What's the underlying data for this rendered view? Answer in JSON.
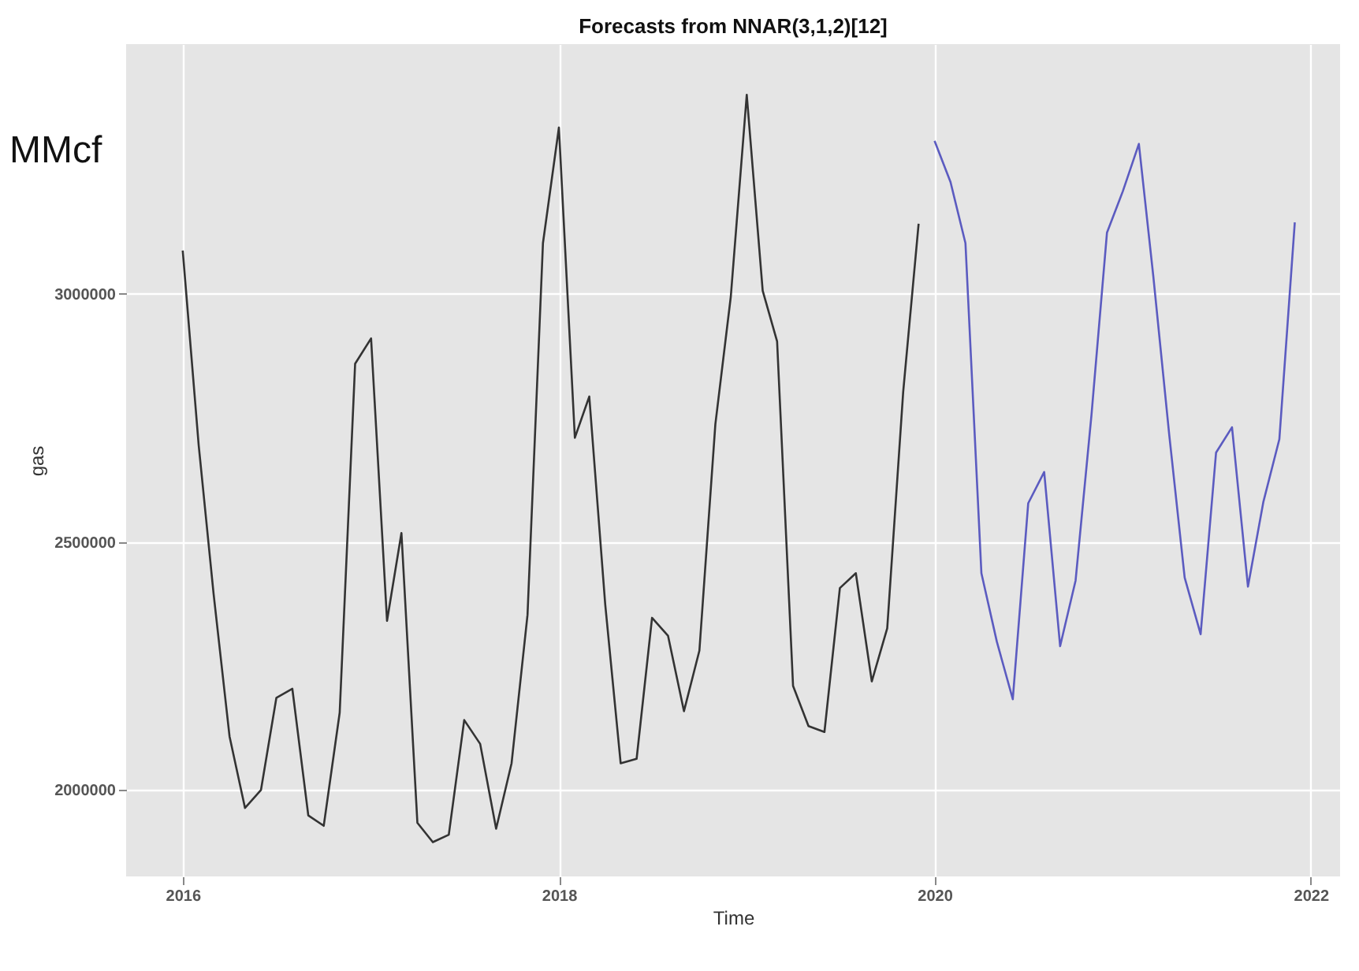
{
  "chart_data": {
    "type": "line",
    "title": "Forecasts from NNAR(3,1,2)[12]",
    "xlabel": "Time",
    "ylabel": "gas",
    "annotations": [
      "MMcf"
    ],
    "xlim": [
      "2015-09-13",
      "2022-02-27"
    ],
    "xticks": [
      "2016",
      "2018",
      "2020",
      "2022"
    ],
    "ylim": [
      1826000,
      3503000
    ],
    "yticks": [
      2000000,
      2500000,
      3000000
    ],
    "grid": true,
    "series": [
      {
        "color": "#333333",
        "x": [
          "2016-01",
          "2016-02",
          "2016-03",
          "2016-04",
          "2016-05",
          "2016-06",
          "2016-07",
          "2016-08",
          "2016-09",
          "2016-10",
          "2016-11",
          "2016-12",
          "2017-01",
          "2017-02",
          "2017-03",
          "2017-04",
          "2017-05",
          "2017-06",
          "2017-07",
          "2017-08",
          "2017-09",
          "2017-10",
          "2017-11",
          "2017-12",
          "2018-01",
          "2018-02",
          "2018-03",
          "2018-04",
          "2018-05",
          "2018-06",
          "2018-07",
          "2018-08",
          "2018-09",
          "2018-10",
          "2018-11",
          "2018-12",
          "2019-01",
          "2019-02",
          "2019-03",
          "2019-04",
          "2019-05",
          "2019-06",
          "2019-07",
          "2019-08",
          "2019-09",
          "2019-10",
          "2019-11",
          "2019-12"
        ],
        "values": [
          3087000,
          2695000,
          2395000,
          2108000,
          1964000,
          2000000,
          2186000,
          2204000,
          1949000,
          1928000,
          2156000,
          2859000,
          2910000,
          2341000,
          2518000,
          1934000,
          1895000,
          1910000,
          2141000,
          2093000,
          1922000,
          2054000,
          2353000,
          3102000,
          3335000,
          2710000,
          2793000,
          2374000,
          2054000,
          2063000,
          2347000,
          2311000,
          2159000,
          2281000,
          2737000,
          2994000,
          3401000,
          3006000,
          2904000,
          2210000,
          2129000,
          2117000,
          2407000,
          2437000,
          2219000,
          2326000,
          2802000,
          3141000
        ]
      },
      {
        "color": "#5b5bc0",
        "x": [
          "2020-01",
          "2020-02",
          "2020-03",
          "2020-04",
          "2020-05",
          "2020-06",
          "2020-07",
          "2020-08",
          "2020-09",
          "2020-10",
          "2020-11",
          "2020-12",
          "2021-01",
          "2021-02",
          "2021-03",
          "2021-04",
          "2021-05",
          "2021-06",
          "2021-07",
          "2021-08",
          "2021-09",
          "2021-10",
          "2021-11",
          "2021-12"
        ],
        "values": [
          3308000,
          3225000,
          3102000,
          2437000,
          2299000,
          2183000,
          2578000,
          2641000,
          2290000,
          2422000,
          2757000,
          3123000,
          3207000,
          3302000,
          3036000,
          2716000,
          2428000,
          2314000,
          2680000,
          2731000,
          2410000,
          2581000,
          2707000,
          3144000
        ]
      }
    ]
  }
}
